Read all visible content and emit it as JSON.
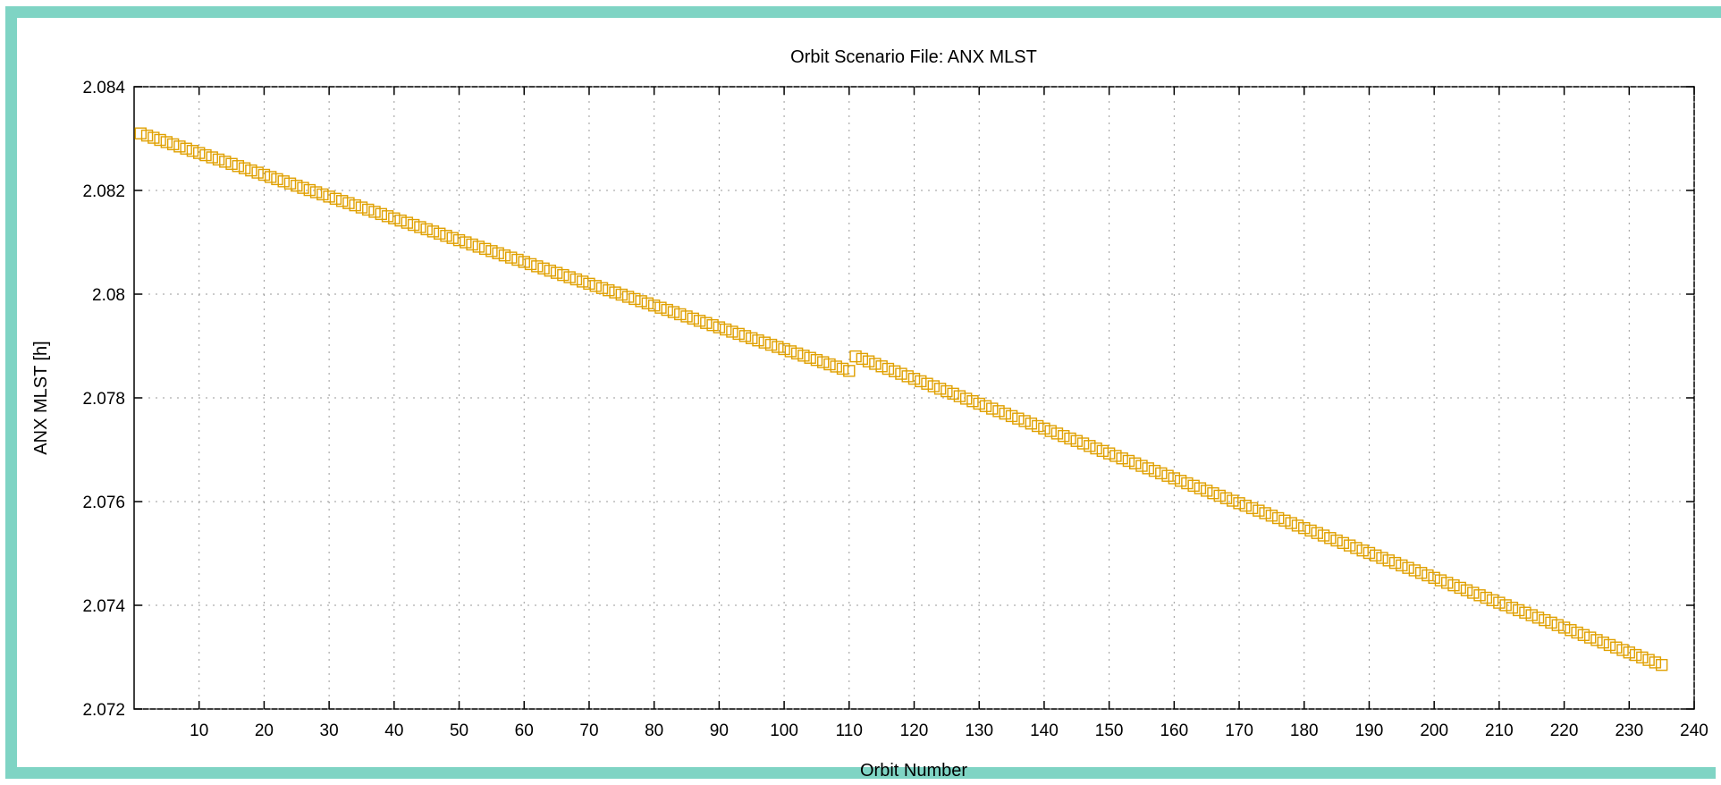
{
  "chart_data": {
    "type": "scatter",
    "title": "Orbit Scenario File: ANX MLST",
    "xlabel": "Orbit Number",
    "ylabel": "ANX MLST [h]",
    "xlim": [
      0,
      240
    ],
    "ylim": [
      2.072,
      2.084
    ],
    "xticks": [
      10,
      20,
      30,
      40,
      50,
      60,
      70,
      80,
      90,
      100,
      110,
      120,
      130,
      140,
      150,
      160,
      170,
      180,
      190,
      200,
      210,
      220,
      230,
      240
    ],
    "yticks": [
      2.072,
      2.074,
      2.076,
      2.078,
      2.08,
      2.082,
      2.084
    ],
    "ytick_labels": [
      "2.072",
      "2.074",
      "2.076",
      "2.078",
      "2.08",
      "2.082",
      "2.084"
    ],
    "grid": true,
    "marker": "open-square",
    "color": "#e0a000",
    "series": [
      {
        "segments": [
          {
            "x_start": 1,
            "x_end": 110,
            "y_start": 2.0831,
            "y_end": 2.07852
          },
          {
            "x_start": 111,
            "x_end": 235,
            "y_start": 2.0788,
            "y_end": 2.07285
          }
        ]
      }
    ]
  }
}
